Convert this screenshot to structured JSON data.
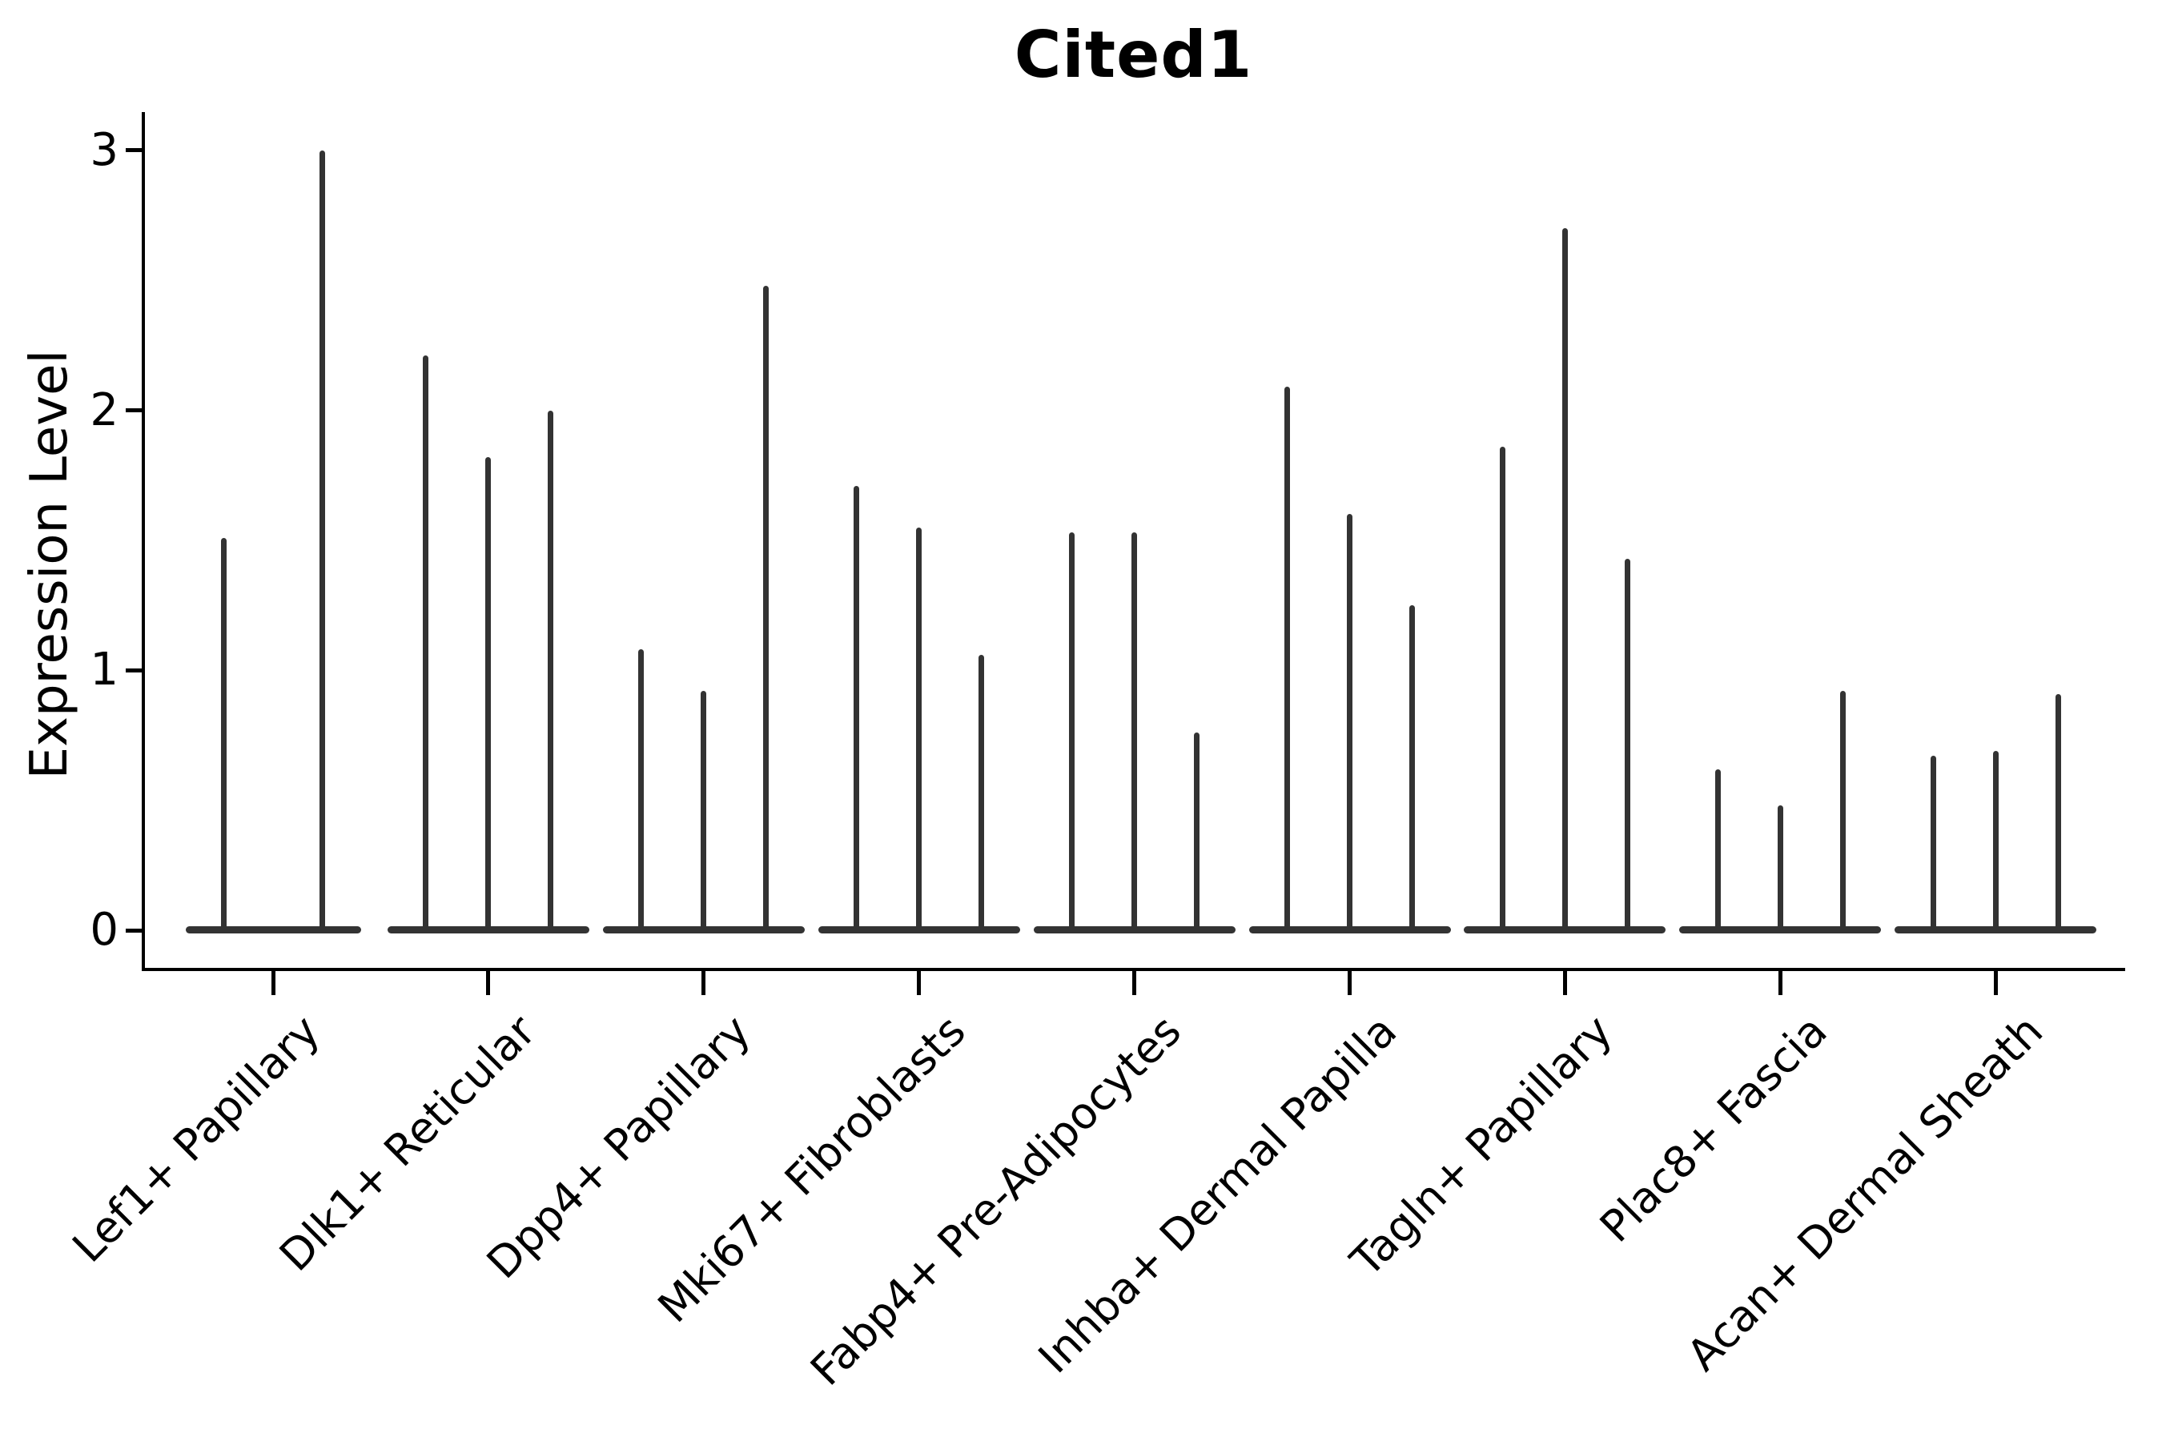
{
  "figure": {
    "title": "Cited1",
    "ylabel": "Expression Level"
  },
  "chart_data": {
    "type": "violin",
    "title": "Cited1",
    "xlabel": "",
    "ylabel": "Expression Level",
    "yticks": [
      0,
      1,
      2,
      3
    ],
    "ylim": [
      -0.15,
      3.15
    ],
    "grid": false,
    "legend": "none",
    "categories": [
      "Lef1+ Papillary",
      "Dlk1+ Reticular",
      "Dpp4+ Papillary",
      "Mki67+ Fibroblasts",
      "Fabp4+ Pre-Adipocytes",
      "Inhba+ Dermal Papilla",
      "Tagln+ Papillary",
      "Plac8+ Fascia",
      "Acan+ Dermal Sheath"
    ],
    "violins_per_category": [
      2,
      3,
      3,
      3,
      3,
      3,
      3,
      3,
      3
    ],
    "series": [
      {
        "category": "Lef1+ Papillary",
        "violin_max_expression": [
          1.51,
          3.0
        ]
      },
      {
        "category": "Dlk1+ Reticular",
        "violin_max_expression": [
          2.21,
          1.82,
          2.0
        ]
      },
      {
        "category": "Dpp4+ Papillary",
        "violin_max_expression": [
          1.08,
          0.92,
          2.48
        ]
      },
      {
        "category": "Mki67+ Fibroblasts",
        "violin_max_expression": [
          1.71,
          1.55,
          1.06
        ]
      },
      {
        "category": "Fabp4+ Pre-Adipocytes",
        "violin_max_expression": [
          1.53,
          1.53,
          0.76
        ]
      },
      {
        "category": "Inhba+ Dermal Papilla",
        "violin_max_expression": [
          2.09,
          1.6,
          1.25
        ]
      },
      {
        "category": "Tagln+ Papillary",
        "violin_max_expression": [
          1.86,
          2.7,
          1.43
        ]
      },
      {
        "category": "Plac8+ Fascia",
        "violin_max_expression": [
          0.62,
          0.48,
          0.92
        ]
      },
      {
        "category": "Acan+ Dermal Sheath",
        "violin_max_expression": [
          0.67,
          0.69,
          0.91
        ]
      }
    ],
    "style_note": "needle-thin violins: density concentrated at 0 (wide flat base on baseline), thin spike rising to the max expression value"
  },
  "colors": {
    "violin": "#333333",
    "axis": "#000000",
    "text": "#000000",
    "background": "#ffffff"
  }
}
